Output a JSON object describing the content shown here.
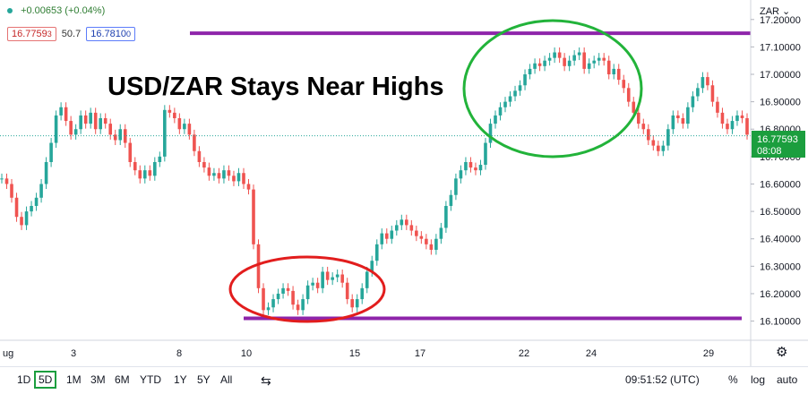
{
  "header": {
    "change": "+0.00653 (+0.04%)",
    "bid": "16.7759",
    "bid_small": "3",
    "spread": "50.7",
    "ask": "16.7810",
    "ask_small": "0"
  },
  "chart_data": {
    "type": "line",
    "title": "USD/ZAR Stays Near Highs",
    "symbol": "ZAR",
    "y_range": [
      16.03,
      17.245
    ],
    "y_ticks": [
      "17.20000",
      "17.10000",
      "17.00000",
      "16.90000",
      "16.80000",
      "16.70000",
      "16.60000",
      "16.50000",
      "16.40000",
      "16.30000",
      "16.20000",
      "16.10000"
    ],
    "x_ticks": [
      "ug",
      "3",
      "8",
      "10",
      "15",
      "17",
      "22",
      "24",
      "29"
    ],
    "last_price": "16.77593",
    "countdown": "08:08",
    "resistance": 17.15,
    "support": 16.11,
    "series": [
      {
        "values": [
          16.62,
          16.6,
          16.55,
          16.48,
          16.45,
          16.5,
          16.52,
          16.55,
          16.6,
          16.68,
          16.75,
          16.85,
          16.88,
          16.83,
          16.78,
          16.8,
          16.85,
          16.82,
          16.86,
          16.8,
          16.84,
          16.82,
          16.78,
          16.76,
          16.8,
          16.75,
          16.68,
          16.65,
          16.62,
          16.65,
          16.63,
          16.68,
          16.7,
          16.87,
          16.86,
          16.84,
          16.8,
          16.82,
          16.78,
          16.72,
          16.68,
          16.66,
          16.63,
          16.64,
          16.62,
          16.65,
          16.63,
          16.61,
          16.64,
          16.6,
          16.58,
          16.38,
          16.22,
          16.14,
          16.15,
          16.18,
          16.2,
          16.22,
          16.21,
          16.16,
          16.14,
          16.18,
          16.23,
          16.24,
          16.22,
          16.28,
          16.25,
          16.26,
          16.27,
          16.24,
          16.18,
          16.15,
          16.18,
          16.22,
          16.28,
          16.32,
          16.38,
          16.42,
          16.4,
          16.43,
          16.45,
          16.47,
          16.45,
          16.43,
          16.41,
          16.4,
          16.38,
          16.36,
          16.4,
          16.44,
          16.52,
          16.56,
          16.62,
          16.65,
          16.68,
          16.66,
          16.65,
          16.67,
          16.75,
          16.82,
          16.85,
          16.88,
          16.9,
          16.92,
          16.94,
          16.96,
          17.0,
          17.02,
          17.04,
          17.03,
          17.05,
          17.06,
          17.08,
          17.06,
          17.03,
          17.05,
          17.07,
          17.08,
          17.02,
          17.04,
          17.05,
          17.06,
          17.05,
          17.0,
          17.02,
          16.98,
          16.95,
          16.9,
          16.86,
          16.82,
          16.8,
          16.76,
          16.74,
          16.72,
          16.74,
          16.8,
          16.85,
          16.84,
          16.82,
          16.88,
          16.92,
          16.95,
          16.99,
          16.96,
          16.9,
          16.86,
          16.82,
          16.8,
          16.83,
          16.85,
          16.84,
          16.78
        ]
      }
    ],
    "annotations": {
      "red_ellipse_label": "",
      "green_ellipse_label": ""
    }
  },
  "footer": {
    "ranges": [
      "1D",
      "5D",
      "1M",
      "3M",
      "6M",
      "YTD",
      "1Y",
      "5Y",
      "All"
    ],
    "active_range": "5D",
    "time": "09:51:52 (UTC)",
    "percent": "%",
    "log": "log",
    "auto": "auto"
  },
  "colors": {
    "up": "#26a69a",
    "down": "#ef5350",
    "accent": "#1b9e3e",
    "purple": "#8e24aa",
    "green_ellipse": "#22b33a",
    "red_ellipse": "#e21d1d"
  }
}
